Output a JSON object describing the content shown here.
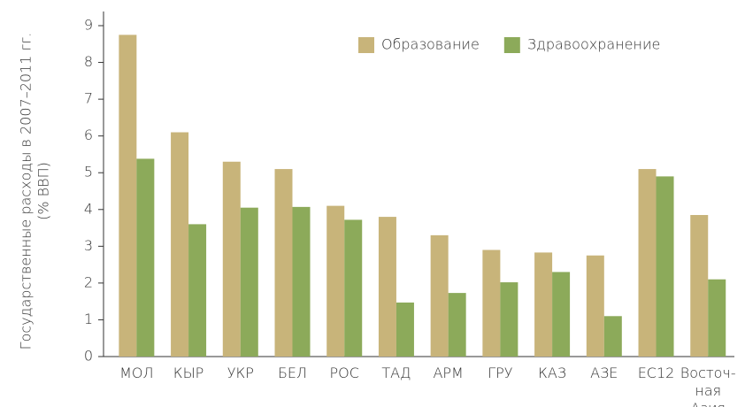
{
  "chart_data": {
    "type": "bar",
    "y_label": [
      "Государственные расходы в 2007–2011 гг.",
      "(% ВВП)"
    ],
    "categories": [
      "МОЛ",
      "КЫР",
      "УКР",
      "БЕЛ",
      "РОС",
      "ТАД",
      "АРМ",
      "ГРУ",
      "КАЗ",
      "АЗЕ",
      "ЕС12",
      "Восточ-\nная Азия"
    ],
    "series": [
      {
        "name": "Образование",
        "color": "#c8b47a",
        "values": [
          8.75,
          6.1,
          5.3,
          5.1,
          4.1,
          3.8,
          3.3,
          2.9,
          2.83,
          2.75,
          5.1,
          3.85
        ]
      },
      {
        "name": "Здравоохранение",
        "color": "#8caa5a",
        "values": [
          5.38,
          3.6,
          4.05,
          4.07,
          3.72,
          1.47,
          1.73,
          2.02,
          2.3,
          1.1,
          4.9,
          2.1
        ]
      }
    ],
    "ylim": [
      0,
      9
    ],
    "yticks": [
      0,
      1,
      2,
      3,
      4,
      5,
      6,
      7,
      8,
      9
    ],
    "grid": false,
    "legend": "top-right"
  }
}
